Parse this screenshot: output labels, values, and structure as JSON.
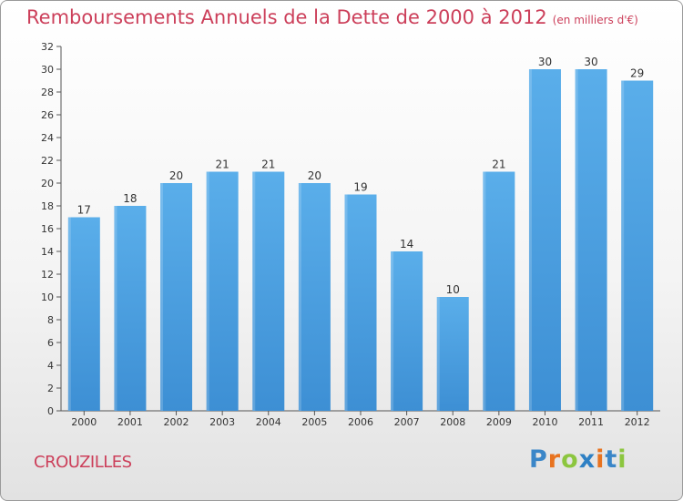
{
  "chart_data": {
    "type": "bar",
    "title": "Remboursements Annuels de la Dette de 2000 à 2012",
    "subtitle": "(en milliers d'€)",
    "categories": [
      "2000",
      "2001",
      "2002",
      "2003",
      "2004",
      "2005",
      "2006",
      "2007",
      "2008",
      "2009",
      "2010",
      "2011",
      "2012"
    ],
    "values": [
      17,
      18,
      20,
      21,
      21,
      20,
      19,
      14,
      10,
      21,
      30,
      30,
      29
    ],
    "ylim": [
      0,
      32
    ],
    "yticks": [
      0,
      2,
      4,
      6,
      8,
      10,
      12,
      14,
      16,
      18,
      20,
      22,
      24,
      26,
      28,
      30,
      32
    ],
    "xlabel": "",
    "ylabel": "",
    "grid": false,
    "bar_color": "#3d8fd4",
    "bar_highlight": "#5aaeea"
  },
  "footer": {
    "commune": "CROUZILLES",
    "brand": [
      "P",
      "r",
      "o",
      "x",
      "i",
      "t",
      "i"
    ],
    "brand_colors": [
      "#3a86c8",
      "#e8731f",
      "#8cc63f",
      "#2e80c4",
      "#e8731f",
      "#3a86c8",
      "#8cc63f"
    ]
  },
  "colors": {
    "title": "#cc3f5a",
    "text": "#333333"
  }
}
